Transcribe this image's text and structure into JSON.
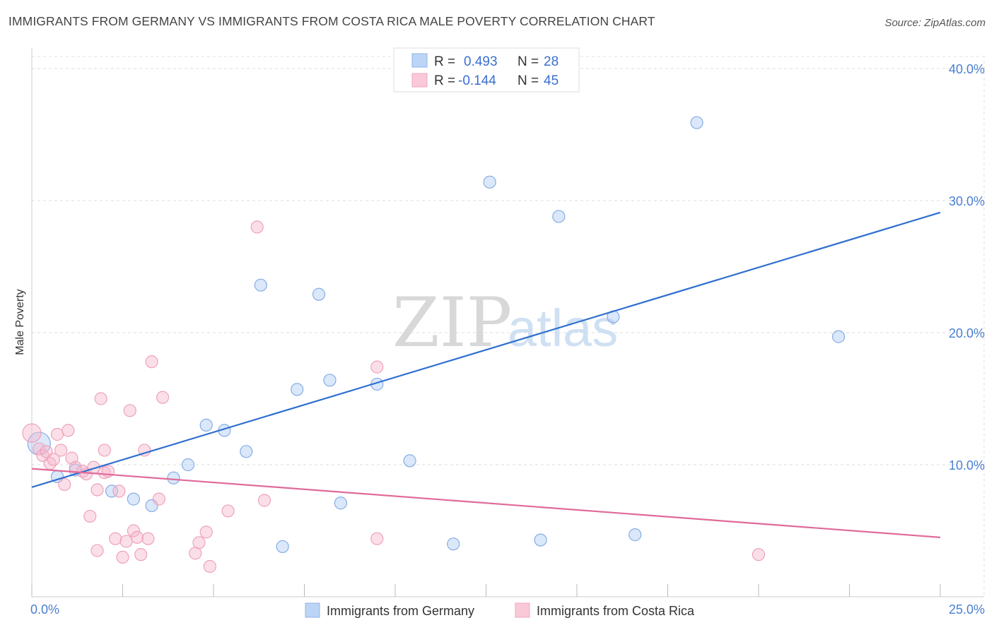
{
  "header": {
    "title": "IMMIGRANTS FROM GERMANY VS IMMIGRANTS FROM COSTA RICA MALE POVERTY CORRELATION CHART",
    "source": "Source: ZipAtlas.com"
  },
  "watermark": {
    "zip": "ZIP",
    "atlas": "atlas"
  },
  "chart_data": {
    "type": "scatter",
    "title": "IMMIGRANTS FROM GERMANY VS IMMIGRANTS FROM COSTA RICA MALE POVERTY CORRELATION CHART",
    "ylabel": "Male Poverty",
    "xlabel": "",
    "xlim": [
      0,
      25
    ],
    "ylim": [
      0,
      40
    ],
    "x_tick_labels": [
      "0.0%",
      "25.0%"
    ],
    "y_ticks": [
      10,
      20,
      30,
      40
    ],
    "y_tick_labels": [
      "10.0%",
      "20.0%",
      "30.0%",
      "40.0%"
    ],
    "grid": true,
    "legend_placement": "top-center",
    "legend_r_label": "R =",
    "legend_n_label": "N =",
    "series": [
      {
        "name": "Immigrants from Germany",
        "color": "#9dbfef",
        "line_color": "#2f6fd0",
        "R": "0.493",
        "N": "28",
        "trend": {
          "x": [
            0,
            25
          ],
          "y": [
            8.3,
            29.1
          ]
        },
        "points": [
          [
            0.2,
            11.6
          ],
          [
            0.7,
            9.1
          ],
          [
            1.2,
            9.6
          ],
          [
            2.2,
            8.0
          ],
          [
            2.8,
            7.4
          ],
          [
            3.3,
            6.9
          ],
          [
            3.9,
            9.0
          ],
          [
            4.3,
            10.0
          ],
          [
            4.8,
            13.0
          ],
          [
            5.3,
            12.6
          ],
          [
            5.9,
            11.0
          ],
          [
            6.3,
            23.6
          ],
          [
            6.9,
            3.8
          ],
          [
            7.3,
            15.7
          ],
          [
            7.9,
            22.9
          ],
          [
            8.2,
            16.4
          ],
          [
            8.5,
            7.1
          ],
          [
            9.5,
            16.1
          ],
          [
            10.4,
            10.3
          ],
          [
            10.6,
            39.1
          ],
          [
            11.6,
            4.0
          ],
          [
            12.6,
            31.4
          ],
          [
            14.0,
            4.3
          ],
          [
            14.5,
            28.8
          ],
          [
            16.0,
            21.2
          ],
          [
            16.6,
            4.7
          ],
          [
            18.3,
            35.9
          ],
          [
            22.2,
            19.7
          ]
        ]
      },
      {
        "name": "Immigrants from Costa Rica",
        "color": "#f3b1c6",
        "line_color": "#e06a99",
        "R": "-0.144",
        "N": "45",
        "trend": {
          "x": [
            0,
            25
          ],
          "y": [
            9.7,
            4.5
          ]
        },
        "points": [
          [
            0.0,
            12.4
          ],
          [
            0.2,
            11.2
          ],
          [
            0.3,
            10.7
          ],
          [
            0.4,
            11.0
          ],
          [
            0.5,
            10.1
          ],
          [
            0.6,
            10.4
          ],
          [
            0.7,
            12.3
          ],
          [
            0.8,
            11.1
          ],
          [
            0.9,
            8.5
          ],
          [
            1.0,
            12.6
          ],
          [
            1.1,
            10.5
          ],
          [
            1.2,
            9.8
          ],
          [
            1.4,
            9.5
          ],
          [
            1.5,
            9.3
          ],
          [
            1.6,
            6.1
          ],
          [
            1.7,
            9.8
          ],
          [
            1.8,
            8.1
          ],
          [
            1.8,
            3.5
          ],
          [
            1.9,
            15.0
          ],
          [
            2.0,
            9.4
          ],
          [
            2.0,
            11.1
          ],
          [
            2.1,
            9.5
          ],
          [
            2.3,
            4.4
          ],
          [
            2.4,
            8.0
          ],
          [
            2.5,
            3.0
          ],
          [
            2.6,
            4.2
          ],
          [
            2.7,
            14.1
          ],
          [
            2.8,
            5.0
          ],
          [
            2.9,
            4.5
          ],
          [
            3.0,
            3.2
          ],
          [
            3.1,
            11.1
          ],
          [
            3.2,
            4.4
          ],
          [
            3.3,
            17.8
          ],
          [
            3.5,
            7.4
          ],
          [
            3.6,
            15.1
          ],
          [
            4.5,
            3.3
          ],
          [
            4.6,
            4.1
          ],
          [
            4.8,
            4.9
          ],
          [
            4.9,
            2.3
          ],
          [
            5.4,
            6.5
          ],
          [
            6.2,
            28.0
          ],
          [
            6.4,
            7.3
          ],
          [
            9.5,
            17.4
          ],
          [
            9.5,
            4.4
          ],
          [
            20.0,
            3.2
          ]
        ]
      }
    ]
  }
}
